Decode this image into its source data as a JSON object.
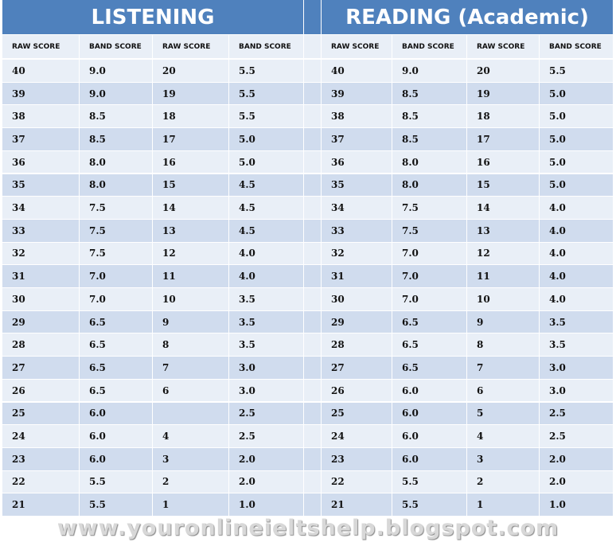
{
  "listening": {
    "title": "LISTENING",
    "columns": [
      "RAW SCORE",
      "BAND SCORE",
      "RAW SCORE",
      "BAND SCORE"
    ],
    "rows": [
      [
        "40",
        "9.0",
        "20",
        "5.5"
      ],
      [
        "39",
        "9.0",
        "19",
        "5.5"
      ],
      [
        "38",
        "8.5",
        "18",
        "5.5"
      ],
      [
        "37",
        "8.5",
        "17",
        "5.0"
      ],
      [
        "36",
        "8.0",
        "16",
        "5.0"
      ],
      [
        "35",
        "8.0",
        "15",
        "4.5"
      ],
      [
        "34",
        "7.5",
        "14",
        "4.5"
      ],
      [
        "33",
        "7.5",
        "13",
        "4.5"
      ],
      [
        "32",
        "7.5",
        "12",
        "4.0"
      ],
      [
        "31",
        "7.0",
        "11",
        "4.0"
      ],
      [
        "30",
        "7.0",
        "10",
        "3.5"
      ],
      [
        "29",
        "6.5",
        "9",
        "3.5"
      ],
      [
        "28",
        "6.5",
        "8",
        "3.5"
      ],
      [
        "27",
        "6.5",
        "7",
        "3.0"
      ],
      [
        "26",
        "6.5",
        "6",
        "3.0"
      ],
      [
        "25",
        "6.0",
        null,
        "2.5"
      ],
      [
        "24",
        "6.0",
        "4",
        "2.5"
      ],
      [
        "23",
        "6.0",
        "3",
        "2.0"
      ],
      [
        "22",
        "5.5",
        "2",
        "2.0"
      ],
      [
        "21",
        "5.5",
        "1",
        "1.0"
      ]
    ]
  },
  "reading": {
    "title": "READING (Academic)",
    "columns": [
      "RAW SCORE",
      "BAND SCORE",
      "RAW SCORE",
      "BAND SCORE"
    ],
    "rows": [
      [
        "40",
        "9.0",
        "20",
        "5.5"
      ],
      [
        "39",
        "8.5",
        "19",
        "5.0"
      ],
      [
        "38",
        "8.5",
        "18",
        "5.0"
      ],
      [
        "37",
        "8.5",
        "17",
        "5.0"
      ],
      [
        "36",
        "8.0",
        "16",
        "5.0"
      ],
      [
        "35",
        "8.0",
        "15",
        "5.0"
      ],
      [
        "34",
        "7.5",
        "14",
        "4.0"
      ],
      [
        "33",
        "7.5",
        "13",
        "4.0"
      ],
      [
        "32",
        "7.0",
        "12",
        "4.0"
      ],
      [
        "31",
        "7.0",
        "11",
        "4.0"
      ],
      [
        "30",
        "7.0",
        "10",
        "4.0"
      ],
      [
        "29",
        "6.5",
        "9",
        "3.5"
      ],
      [
        "28",
        "6.5",
        "8",
        "3.5"
      ],
      [
        "27",
        "6.5",
        "7",
        "3.0"
      ],
      [
        "26",
        "6.0",
        "6",
        "3.0"
      ],
      [
        "25",
        "6.0",
        "5",
        "2.5"
      ],
      [
        "24",
        "6.0",
        "4",
        "2.5"
      ],
      [
        "23",
        "6.0",
        "3",
        "2.0"
      ],
      [
        "22",
        "5.5",
        "2",
        "2.0"
      ],
      [
        "21",
        "5.5",
        "1",
        "1.0"
      ]
    ]
  },
  "footer": "www.youronlineieltshelp.blogspot.com"
}
